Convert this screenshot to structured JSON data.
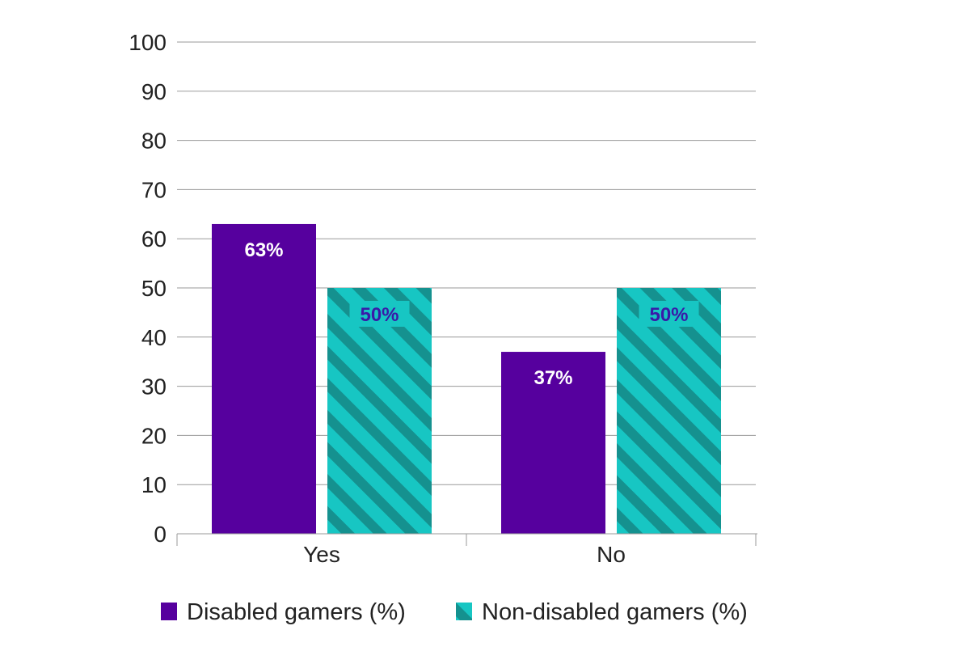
{
  "chart_data": {
    "type": "bar",
    "categories": [
      "Yes",
      "No"
    ],
    "series": [
      {
        "name": "Disabled gamers (%)",
        "values": [
          63,
          37
        ],
        "labels": [
          "63%",
          "37%"
        ],
        "color": "#56009e",
        "pattern": "solid"
      },
      {
        "name": "Non-disabled gamers (%)",
        "values": [
          50,
          50
        ],
        "labels": [
          "50%",
          "50%"
        ],
        "color": "#17c6c3",
        "pattern": "diagonal-stripes"
      }
    ],
    "ylim": [
      0,
      100
    ],
    "yticks": [
      0,
      10,
      20,
      30,
      40,
      50,
      60,
      70,
      80,
      90,
      100
    ],
    "grid": true,
    "legend_position": "bottom",
    "title": "",
    "xlabel": "",
    "ylabel": ""
  },
  "colors": {
    "stripe_dark": "#15918f",
    "label_on_dark": "#ffffff",
    "label_on_light": "#3a1aa8"
  }
}
